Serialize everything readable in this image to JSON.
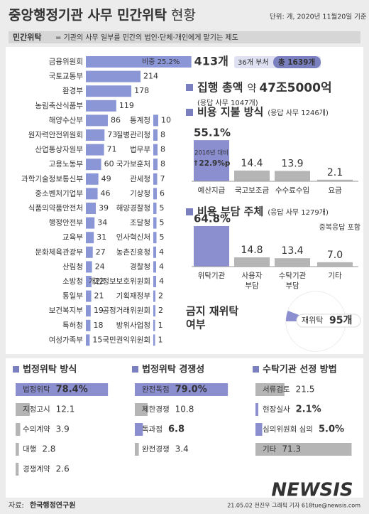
{
  "title": "중앙행정기관 사무 민간위탁",
  "title_suffix": "현황",
  "unit_note": "단위: 개, 2020년 11월20일 기준",
  "definition": {
    "label": "민간위탁",
    "text": "= 기관의 사무 일부를 민간의 법인·단체·개인에게 맡기는 제도"
  },
  "execution": {
    "title": "집행 총액",
    "prefix": "약",
    "amount": "47조5000억",
    "note": "(응답 사무 1047개)"
  },
  "chart_data": [
    {
      "type": "agency-bar",
      "color": "#8b96d6",
      "categories": [
        "금융위원회",
        "국토교통부",
        "환경부",
        "농림축산식품부",
        "해양수산부",
        "원자력안전위원회",
        "산업통상자원부",
        "고용노동부",
        "과학기술정보통신부",
        "중소벤처기업부",
        "식품의약품안전처",
        "행정안전부",
        "교육부",
        "문화체육관광부",
        "산림청",
        "소방청",
        "통일부",
        "보건복지부",
        "특허청",
        "여성가족부",
        "통계청",
        "질병관리청",
        "법무부",
        "국가보훈처",
        "관세청",
        "기상청",
        "해양경찰청",
        "조달청",
        "인사혁신처",
        "농촌진흥청",
        "경찰청",
        "개인정보보호위원회",
        "기획재정부",
        "공정거래위원회",
        "방위사업청",
        "국민권익위원회"
      ],
      "values": [
        413,
        214,
        178,
        119,
        86,
        73,
        71,
        60,
        49,
        46,
        39,
        34,
        31,
        27,
        24,
        22,
        21,
        19,
        18,
        15,
        10,
        8,
        8,
        8,
        7,
        6,
        5,
        5,
        5,
        4,
        4,
        4,
        2,
        2,
        1,
        1
      ],
      "value_labels": [
        "413개",
        "214",
        "178",
        "119",
        "86",
        "73",
        "71",
        "60",
        "49",
        "46",
        "39",
        "34",
        "31",
        "27",
        "24",
        "22",
        "21",
        "19",
        "18",
        "15",
        "10",
        "8",
        "8",
        "8",
        "7",
        "6",
        "5",
        "5",
        "5",
        "4",
        "4",
        "4",
        "2",
        "2",
        "1",
        "1"
      ],
      "annotations": {
        "share": "비중 25.2%",
        "total_count": "36개 부처",
        "total": "총 1639개"
      }
    },
    {
      "type": "column",
      "title": "비용 지불 방식",
      "subtitle": "(응답 사무 1246개)",
      "categories": [
        "예산지급",
        "국고보조금",
        "수수료수입",
        "요금"
      ],
      "values": [
        55.1,
        14.4,
        13.9,
        2.1
      ],
      "value_labels": [
        "55.1%",
        "14.4",
        "13.9",
        "2.1"
      ],
      "colors": [
        "#8b8fd0",
        "#b5b5b5",
        "#b5b5b5",
        "#b5b5b5"
      ],
      "annotation": [
        "2016년 대비",
        "↑22.9%p"
      ]
    },
    {
      "type": "column",
      "title": "비용 부담 주체",
      "subtitle": "(응답 사무 1279개)",
      "note": "중복응답 포함",
      "categories": [
        "위탁기관",
        "사용자 부담",
        "수탁기관 부담",
        "기타"
      ],
      "values": [
        64.8,
        14.8,
        13.4,
        7.0
      ],
      "value_labels": [
        "64.8%",
        "14.8",
        "13.4",
        "7.0"
      ],
      "colors": [
        "#8b8fd0",
        "#b5b5b5",
        "#b5b5b5",
        "#b5b5b5"
      ]
    },
    {
      "type": "pie",
      "title_lines": [
        "금지 재위탁",
        "여부"
      ],
      "categories": [
        "재위탁",
        null
      ],
      "values": [
        95,
        1544
      ],
      "value_labels": [
        "95개",
        null
      ],
      "colors": [
        "#8b8fd0",
        "#ffffff"
      ]
    },
    {
      "type": "hbar",
      "title": "법정위탁 방식",
      "categories": [
        "법정위탁",
        "지정고시",
        "수의계약",
        "대행",
        "경쟁계약"
      ],
      "values": [
        78.4,
        12.1,
        3.9,
        2.8,
        2.6
      ],
      "value_labels": [
        "78.4%",
        "12.1",
        "3.9",
        "2.8",
        "2.6"
      ],
      "colors": [
        "#8b8fd0",
        "#b5b5b5",
        "#b5b5b5",
        "#b5b5b5",
        "#b5b5b5"
      ]
    },
    {
      "type": "hbar",
      "title": "법정위탁 경쟁성",
      "categories": [
        "완전독점",
        "제한경쟁",
        "독과점",
        "완전경쟁"
      ],
      "values": [
        79.0,
        10.8,
        6.8,
        3.4
      ],
      "value_labels": [
        "79.0%",
        "10.8",
        "6.8",
        "3.4"
      ],
      "colors": [
        "#8b8fd0",
        "#b5b5b5",
        "#8b8fd0",
        "#b5b5b5"
      ]
    },
    {
      "type": "hbar",
      "title": "수탁기관 선정 방법",
      "categories": [
        "서류검토",
        "현장실사",
        "심의위원회 심의",
        "기타"
      ],
      "values": [
        21.5,
        2.1,
        5.0,
        71.3
      ],
      "value_labels": [
        "21.5",
        "2.1%",
        "5.0%",
        "71.3"
      ],
      "colors": [
        "#b5b5b5",
        "#8b8fd0",
        "#8b8fd0",
        "#b5b5b5"
      ]
    }
  ],
  "footer": {
    "source_label": "자료:",
    "source": "한국행정연구원",
    "credit": "21.05.02 전진우 그래픽 기자 618tue@newsis.com"
  },
  "watermark": "NEWSIS"
}
